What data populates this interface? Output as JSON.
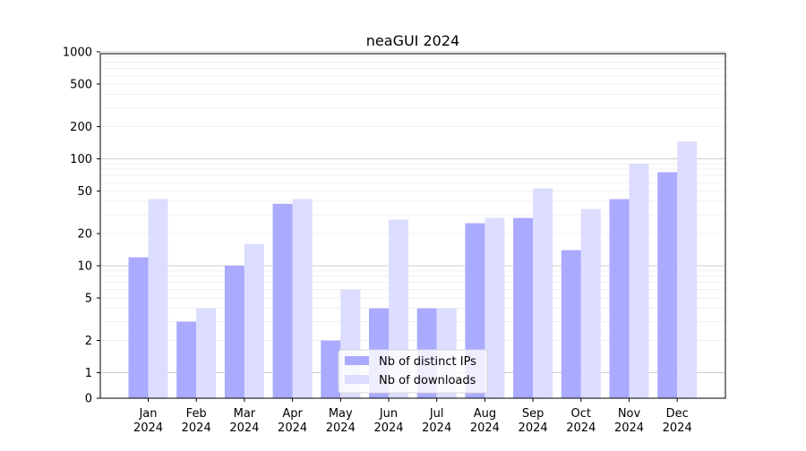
{
  "chart_data": {
    "type": "bar",
    "title": "neaGUI 2024",
    "xlabel": "",
    "ylabel": "",
    "y_scale": "symlog",
    "ylim": [
      0,
      1200
    ],
    "y_ticks": [
      0,
      1,
      2,
      5,
      10,
      20,
      50,
      100,
      200,
      500,
      1000
    ],
    "y_tick_labels": [
      "0",
      "1",
      "2",
      "5",
      "10",
      "20",
      "50",
      "100",
      "200",
      "500",
      "1000"
    ],
    "grid": true,
    "legend_position": "bottom-center",
    "categories": [
      [
        "Jan",
        "2024"
      ],
      [
        "Feb",
        "2024"
      ],
      [
        "Mar",
        "2024"
      ],
      [
        "Apr",
        "2024"
      ],
      [
        "May",
        "2024"
      ],
      [
        "Jun",
        "2024"
      ],
      [
        "Jul",
        "2024"
      ],
      [
        "Aug",
        "2024"
      ],
      [
        "Sep",
        "2024"
      ],
      [
        "Oct",
        "2024"
      ],
      [
        "Nov",
        "2024"
      ],
      [
        "Dec",
        "2024"
      ]
    ],
    "series": [
      {
        "name": "Nb of distinct IPs",
        "color": "#aaaaff",
        "values": [
          12,
          3,
          10,
          38,
          2,
          4,
          4,
          25,
          28,
          14,
          42,
          75
        ]
      },
      {
        "name": "Nb of downloads",
        "color": "#ddddff",
        "values": [
          42,
          4,
          16,
          42,
          6,
          27,
          4,
          28,
          53,
          34,
          90,
          145
        ]
      }
    ]
  }
}
